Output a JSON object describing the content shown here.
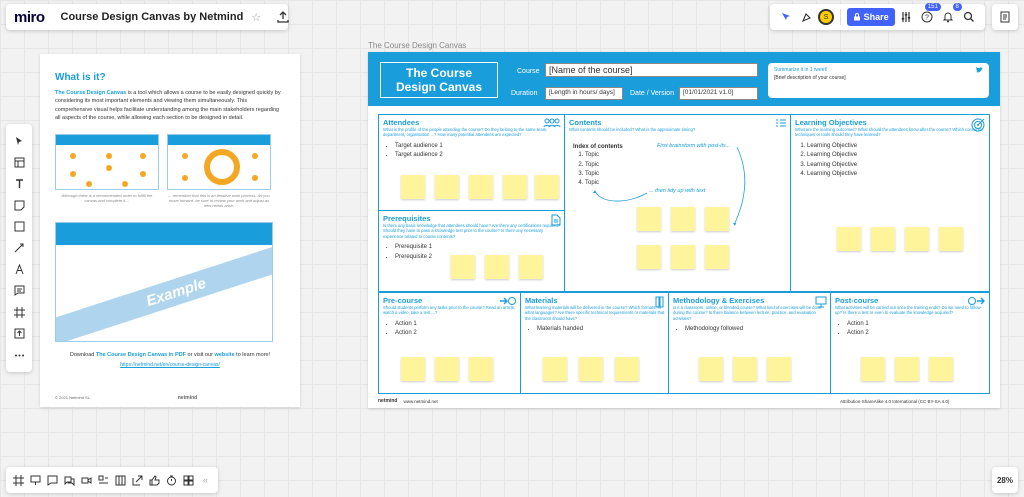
{
  "header": {
    "logo": "miro",
    "board_title": "Course Design Canvas by Netmind",
    "star": "☆",
    "share_label": "Share",
    "badge_help": "151",
    "badge_bell": "8",
    "avatar_initial": "S"
  },
  "zoom": "28%",
  "canvas_label": "The Course Design Canvas",
  "info": {
    "title": "What is it?",
    "intro_bold": "The Course Design Canvas",
    "intro_rest": " is a tool which allows a course to be easily designed quickly by considering its most important elements and viewing them simultaneously. This comprehensive visual helps facilitate understanding among the main stakeholders regarding all aspects of the course, while allowing each section to be designed in detail.",
    "caption_left": "Although there is a recommended order to fulfill the canvas and complete it....",
    "caption_right": "... remember that this is an iterative work process. As you move forward, be sure to review your work and adjust as new needs arise.",
    "example_label": "Example",
    "download_1": "Download ",
    "download_link": "The Course Design Canvas in PDF",
    "download_2": " or visit our ",
    "download_web": "website",
    "download_3": " to learn more!",
    "url": "https://netmind.net/en/course-design-canvas/",
    "copyright": "© 2021 Netmind SL",
    "brand": "netmind"
  },
  "canvas": {
    "title_1": "The Course",
    "title_2": "Design Canvas",
    "course_label": "Course",
    "course_value": "[Name of the course]",
    "duration_label": "Duration",
    "duration_value": "[Length in hours/ days]",
    "date_label": "Date / Version",
    "date_value": "[01/01/2021  v1.0]",
    "tweet_title": "Summarize it in 1 tweet!",
    "tweet_text": "[Brief description of your course]",
    "attendees": {
      "title": "Attendees",
      "q": "What is the profile of the people attending the course? Do they belong to the same team, department, organisation ...? How many potential attendees are expected?",
      "items": [
        "Target audience 1",
        "Target audience 2"
      ]
    },
    "contents": {
      "title": "Contents",
      "q": "What contents should be included? What is the approximate timing?",
      "index_title": "Index of contents",
      "items": [
        "Topic",
        "Topic",
        "Topic",
        "Topic"
      ],
      "annot_1": "First brainstorm with post-its...",
      "annot_2": "... then tidy up with text"
    },
    "objectives": {
      "title": "Learning Objectives",
      "q": "What are the learning outcomes? What should the attendees know after the course? Which concepts, techniques or tools should they have learned?",
      "items": [
        "Learning Objective",
        "Learning Objective",
        "Learning Objective",
        "Learning Objective"
      ]
    },
    "prerequisites": {
      "title": "Prerequisites",
      "q": "Is there any basic knowledge that attendees should have? Are there any certifications required? Should they have to pass a knowledge test prior to the course? Is there any necessary experience related to course contents?",
      "items": [
        "Prerequisite 1",
        "Prerequisite 2"
      ]
    },
    "precourse": {
      "title": "Pre-course",
      "q": "Should students perform any tasks prior to the course? Read an article, watch a video, take a test ...?",
      "items": [
        "Action 1",
        "Action 2"
      ]
    },
    "materials": {
      "title": "Materials",
      "q": "What learning materials will be delivered in the course? Which formats, in what languages? Are there specific technical requirements or materials that the classroom should have?",
      "items": [
        "Materials handed"
      ]
    },
    "methodology": {
      "title": "Methodology & Exercises",
      "q": "Is it a classroom, online, or blended course? What kind of exercises will be done during the course? Is there balance between lecture, practice, and evaluation activities?",
      "items": [
        "Methodology followed"
      ]
    },
    "postcourse": {
      "title": "Post-course",
      "q": "What activities will be carried out once the training ends? Do we need to follow-up? Is there a test or even to evaluate the knowledge acquired?",
      "items": [
        "Action 1",
        "Action 2"
      ]
    },
    "footer_brand": "netmind",
    "footer_url": "www.netmind.net",
    "footer_license": "Attribution-ShareAlike 4.0 International (CC BY-SA 4.0)"
  },
  "colors": {
    "accent": "#1a9ddb",
    "sticky": "#fef49c",
    "miro_blue": "#4262ff"
  }
}
